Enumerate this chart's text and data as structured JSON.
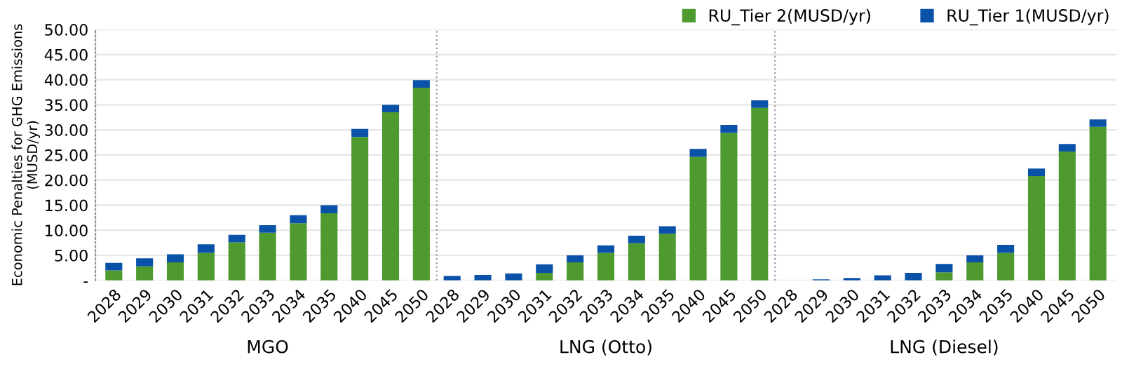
{
  "chart_data": {
    "type": "bar",
    "stacked": true,
    "ylabel": "Economic Penalties for GHG Emissions\n(MUSD/yr)",
    "categories": [
      "2028",
      "2029",
      "2030",
      "2031",
      "2032",
      "2033",
      "2034",
      "2035",
      "2040",
      "2045",
      "2050",
      "2028",
      "2029",
      "2030",
      "2031",
      "2032",
      "2033",
      "2034",
      "2035",
      "2040",
      "2045",
      "2050",
      "2028",
      "2029",
      "2030",
      "2031",
      "2032",
      "2033",
      "2034",
      "2035",
      "2040",
      "2045",
      "2050"
    ],
    "series": [
      {
        "name": "RU_Tier 2(MUSD/yr)",
        "color": "#4e9a2e",
        "values": [
          2.0,
          2.8,
          3.6,
          5.5,
          7.6,
          9.5,
          11.4,
          13.4,
          28.6,
          33.5,
          38.4,
          0,
          0,
          0,
          1.5,
          3.6,
          5.5,
          7.4,
          9.3,
          24.6,
          29.4,
          34.4,
          0,
          0,
          0,
          0,
          0,
          1.6,
          3.6,
          5.5,
          20.8,
          25.7,
          30.6
        ]
      },
      {
        "name": "RU_Tier 1(MUSD/yr)",
        "color": "#0a52a8",
        "values": [
          1.5,
          1.6,
          1.6,
          1.7,
          1.5,
          1.5,
          1.6,
          1.6,
          1.6,
          1.5,
          1.5,
          0.9,
          1.1,
          1.4,
          1.7,
          1.4,
          1.5,
          1.5,
          1.5,
          1.6,
          1.6,
          1.5,
          0,
          0.2,
          0.5,
          1.0,
          1.5,
          1.7,
          1.4,
          1.6,
          1.5,
          1.5,
          1.5
        ]
      }
    ],
    "annotations": [
      "MGO",
      "LNG (Otto)",
      "LNG (Diesel)"
    ],
    "ylim": [
      0,
      50
    ],
    "yticks": [
      {
        "value": 0,
        "label": "-"
      },
      {
        "value": 5,
        "label": "5.00"
      },
      {
        "value": 10,
        "label": "10.00"
      },
      {
        "value": 15,
        "label": "15.00"
      },
      {
        "value": 20,
        "label": "20.00"
      },
      {
        "value": 25,
        "label": "25.00"
      },
      {
        "value": 30,
        "label": "30.00"
      },
      {
        "value": 35,
        "label": "35.00"
      },
      {
        "value": 40,
        "label": "40.00"
      },
      {
        "value": 45,
        "label": "45.00"
      },
      {
        "value": 50,
        "label": "50.00"
      }
    ],
    "grid": "y",
    "legend": "top right"
  }
}
